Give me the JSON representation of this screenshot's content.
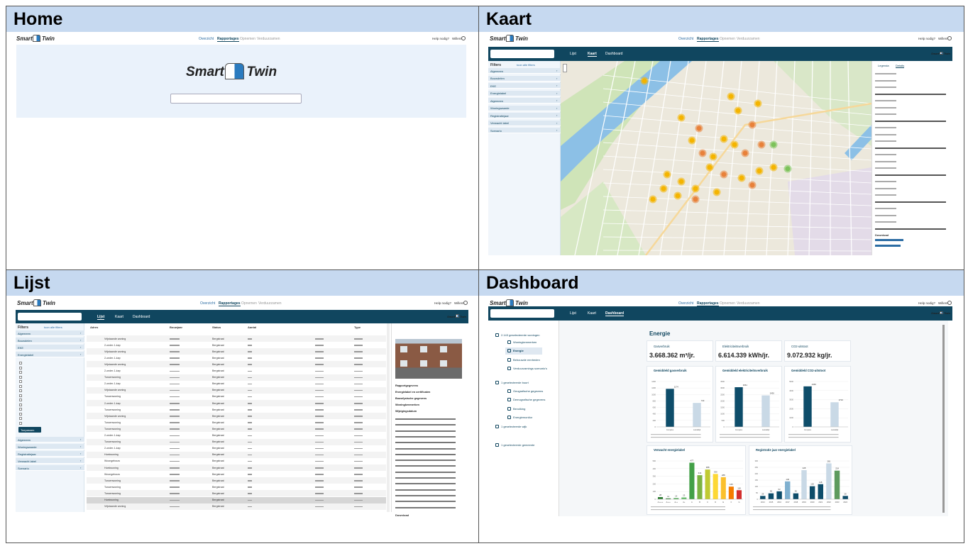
{
  "app": {
    "logo_left": "Smart",
    "logo_right": "Twin",
    "nav": [
      "Overzicht",
      "Rapportages",
      "Opnemen",
      "Verduurzamen"
    ],
    "help": "Help nodig?",
    "user": "Willem",
    "tabs": [
      "Lijst",
      "Kaart",
      "Dashboard"
    ],
    "filters": "Filters",
    "filters_link": "toon alle filters",
    "filter_groups": [
      "Algemeen",
      "Bouwdelen",
      "EKE",
      "Energielabel",
      "Algemeen",
      "Woningwaarde",
      "Registratiejaar",
      "Verwacht label",
      "Scenario"
    ]
  },
  "panels": {
    "home": {
      "title": "Home"
    },
    "kaart": {
      "title": "Kaart",
      "legend_tabs": [
        "Legenda",
        "Details"
      ],
      "download": "Download"
    },
    "lijst": {
      "title": "Lijst",
      "button": "Toepassen",
      "columns": [
        "Adres",
        "Bouwjaar",
        "Status",
        "Aantal",
        "Type"
      ],
      "rows": [
        "Vrijstaande woning",
        "2-onder-1-kap",
        "Vrijstaande woning",
        "2-onder-1-kap",
        "Vrijstaande woning",
        "2-onder-1-kap",
        "Tussenwoning",
        "2-onder-1-kap",
        "Vrijstaande woning",
        "Tussenwoning",
        "2-onder-1-kap",
        "Tussenwoning",
        "Vrijstaande woning",
        "Tussenwoning",
        "Tussenwoning",
        "2-onder-1-kap",
        "Tussenwoning",
        "2-onder-1-kap",
        "Hoekwoning",
        "Woongebouw",
        "Hoekwoning",
        "Woongebouw",
        "Tussenwoning",
        "Tussenwoning",
        "Tussenwoning",
        "Hoekwoning",
        "Vrijstaande woning"
      ],
      "status": "Bergstraat",
      "details": [
        "Rapportgegevens",
        "Energielabel en certificaten",
        "Bouwfysische gegevens",
        "Woningkenmerken",
        "Wijzigingsdatum"
      ],
      "download": "Download"
    },
    "dashboard": {
      "title": "Dashboard",
      "heading": "Energie",
      "sidebar": [
        "2.143 geselecteerde woningen",
        "Woningkenmerken",
        "Energie",
        "Bebouwde eenheden",
        "Verduurzamings scenario's",
        "1 geselecteerde buurt",
        "Geografische gegevens",
        "Demografische gegevens",
        "Bevolking",
        "Energiemonitor",
        "1 geselecteerde wijk",
        "1 geselecteerde gemeente"
      ],
      "summary": [
        {
          "label": "Gasverbruik",
          "value": "3.668.362 m³/jr."
        },
        {
          "label": "Elektriciteitsverbruik",
          "value": "6.614.339 kWh/jr."
        },
        {
          "label": "CO2-uitstoot",
          "value": "9.072.932 kg/jr."
        }
      ],
      "chart_data": [
        {
          "type": "bar",
          "title": "Gemiddeld gasverbruik",
          "categories": [
            "Complex",
            "Landelijk"
          ],
          "values": [
            1174,
            740
          ],
          "colors": [
            "#0e4d6a",
            "#c9d9e6"
          ],
          "ylim": [
            0,
            1400
          ],
          "yticks": [
            0,
            200,
            400,
            600,
            800,
            1000,
            1200,
            1400
          ]
        },
        {
          "type": "bar",
          "title": "Gemiddeld elektriciteitsverbruik",
          "categories": [
            "Complex",
            "Landelijk"
          ],
          "values": [
            3061,
            2430
          ],
          "colors": [
            "#0e4d6a",
            "#c9d9e6"
          ],
          "ylim": [
            0,
            3500
          ],
          "yticks": [
            0,
            500,
            1000,
            1500,
            2000,
            2500,
            3000,
            3500
          ]
        },
        {
          "type": "bar",
          "title": "Gemiddeld CO2-uitstoot",
          "categories": [
            "Complex",
            "Landelijk"
          ],
          "values": [
            4466,
            2716
          ],
          "colors": [
            "#0e4d6a",
            "#c9d9e6"
          ],
          "ylim": [
            0,
            5000
          ],
          "yticks": [
            0,
            1000,
            2000,
            3000,
            4000,
            5000
          ]
        },
        {
          "type": "bar",
          "title": "Verwacht energielabel",
          "categories": [
            "A++++",
            "A+++",
            "A++",
            "A+",
            "A",
            "B",
            "C",
            "D",
            "E",
            "F",
            "G"
          ],
          "values": [
            28,
            11,
            14,
            23,
            477,
            314,
            388,
            330,
            288,
            165,
            118
          ],
          "colors": [
            "#2e7d32",
            "#2e7d32",
            "#43a047",
            "#66bb6a",
            "#43a047",
            "#7cb342",
            "#c0ca33",
            "#fdd835",
            "#fbc02d",
            "#f57c00",
            "#d32f2f"
          ],
          "ylim": [
            0,
            500
          ],
          "yticks": [
            0,
            100,
            200,
            300,
            400,
            500
          ]
        },
        {
          "type": "bar",
          "title": "Registratie jaar energielabel",
          "categories": [
            "2014",
            "2015",
            "2016",
            "2017",
            "2018",
            "2019",
            "2020",
            "2021",
            "2022",
            "2023",
            "2024"
          ],
          "values": [
            26,
            46,
            62,
            140,
            46,
            228,
            102,
            118,
            281,
            224,
            26
          ],
          "colors": [
            "#0e4d6a",
            "#0e4d6a",
            "#0e4d6a",
            "#7fb0cf",
            "#0e4d6a",
            "#c9d9e6",
            "#0e4d6a",
            "#0e4d6a",
            "#c9d9e6",
            "#5e9b5e",
            "#0e4d6a"
          ],
          "ylim": [
            0,
            300
          ],
          "yticks": [
            0,
            50,
            100,
            150,
            200,
            250,
            300
          ]
        }
      ]
    }
  }
}
